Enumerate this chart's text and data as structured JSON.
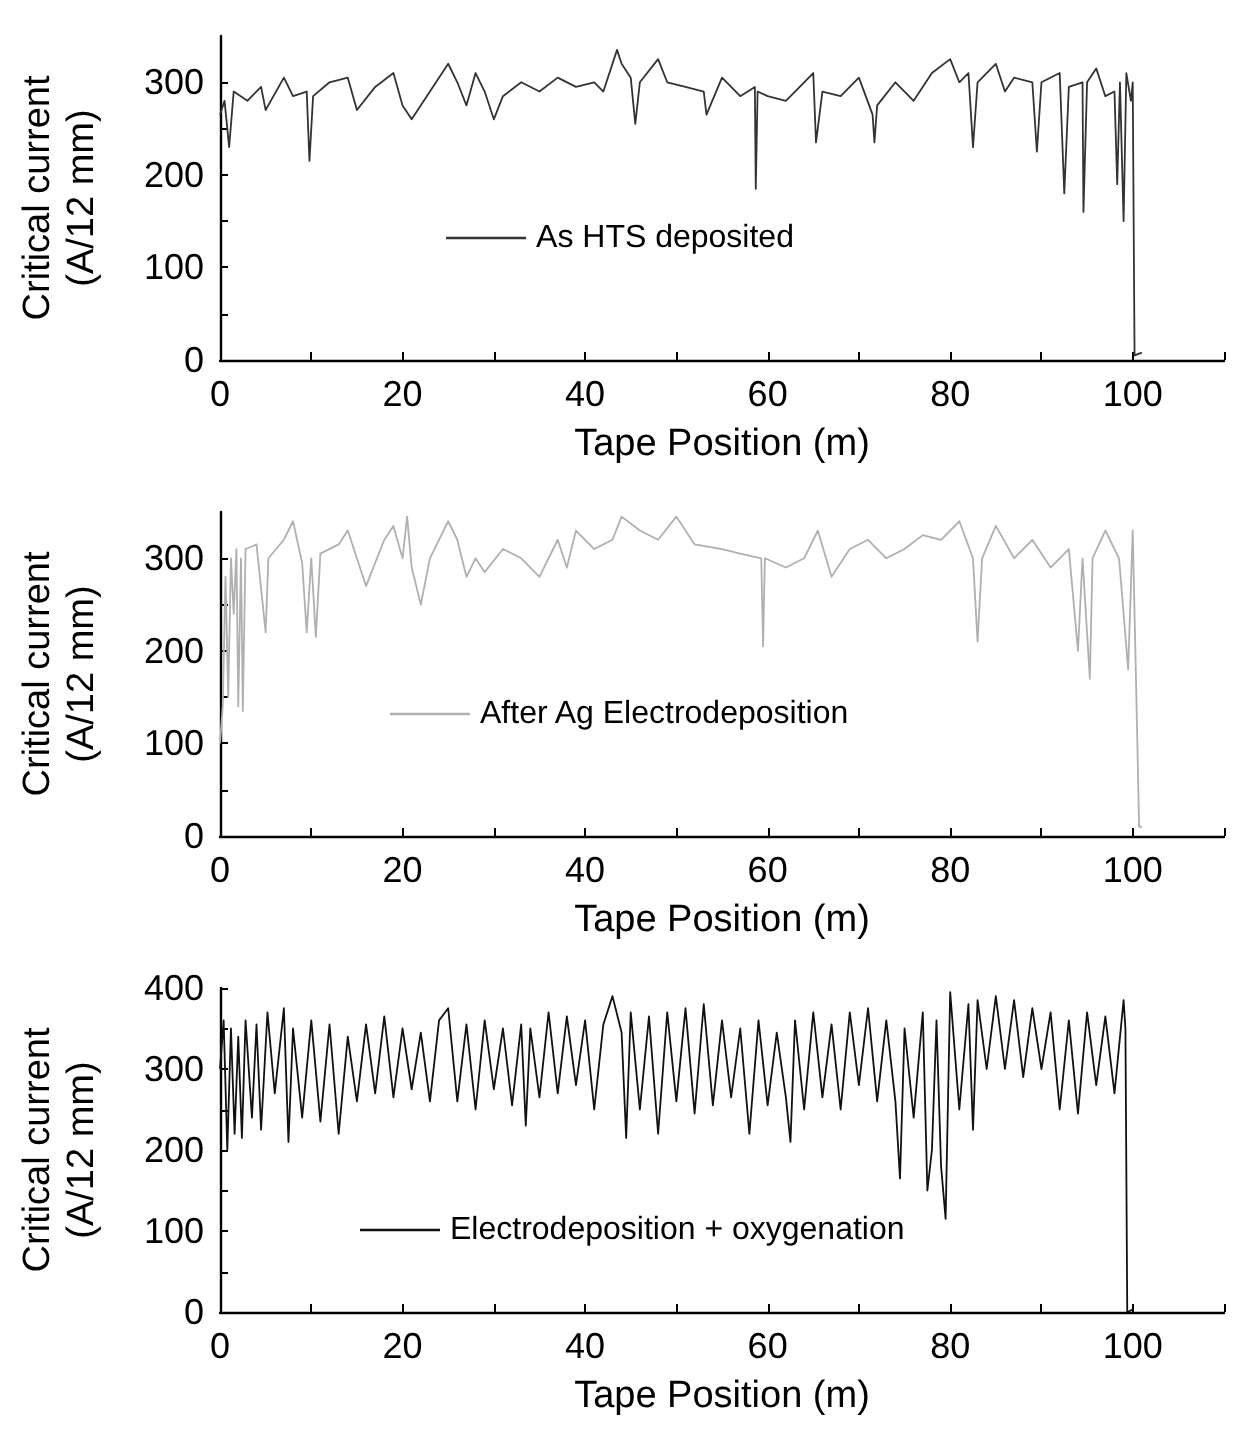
{
  "chart_data": [
    {
      "type": "line",
      "xlabel": "Tape Position (m)",
      "ylabel": "Critical current\n(A/12 mm)",
      "legend": "center",
      "grid": false,
      "xlim": [
        0,
        110
      ],
      "xticks": [
        0,
        {
          "value": 10,
          "label": null
        },
        20,
        {
          "value": 30,
          "label": null
        },
        40,
        {
          "value": 50,
          "label": null
        },
        60,
        {
          "value": 70,
          "label": null
        },
        80,
        {
          "value": 90,
          "label": null
        },
        100,
        {
          "value": 110,
          "label": null
        }
      ],
      "ylim": [
        0,
        350
      ],
      "yticks": [
        0,
        {
          "value": 50,
          "label": null
        },
        100,
        {
          "value": 150,
          "label": null
        },
        200,
        {
          "value": 250,
          "label": null
        },
        300
      ],
      "series": [
        {
          "name": "As HTS deposited",
          "color": "#333333",
          "x": [
            0,
            0.5,
            1,
            1.5,
            3,
            4.5,
            5,
            7,
            8,
            9.5,
            9.8,
            10.2,
            12,
            14,
            15,
            17,
            19,
            20,
            21,
            23,
            25,
            26,
            27,
            28,
            29,
            30,
            31,
            33,
            35,
            37,
            39,
            41,
            42,
            43.5,
            44,
            45,
            45.5,
            46,
            48,
            49,
            51,
            53,
            53.3,
            55,
            57,
            58.6,
            58.7,
            58.9,
            60,
            62,
            64,
            65,
            65.3,
            66,
            68,
            70,
            71.5,
            71.7,
            72,
            74,
            76,
            78,
            80,
            81,
            82,
            82.5,
            83,
            85,
            86,
            87,
            89,
            89.5,
            90,
            92,
            92.5,
            93,
            94.5,
            94.6,
            95,
            96,
            97,
            98,
            98.3,
            98.6,
            99,
            99.3,
            99.8,
            100,
            100.2,
            101
          ],
          "values": [
            265,
            280,
            230,
            290,
            280,
            295,
            270,
            305,
            285,
            290,
            215,
            285,
            300,
            305,
            270,
            295,
            310,
            275,
            260,
            290,
            320,
            300,
            275,
            310,
            290,
            260,
            285,
            300,
            290,
            305,
            295,
            300,
            290,
            335,
            320,
            305,
            255,
            300,
            325,
            300,
            295,
            290,
            265,
            305,
            285,
            295,
            185,
            290,
            285,
            280,
            300,
            310,
            235,
            290,
            285,
            305,
            265,
            235,
            275,
            300,
            280,
            310,
            325,
            300,
            310,
            230,
            300,
            320,
            290,
            305,
            300,
            225,
            300,
            310,
            180,
            295,
            300,
            160,
            300,
            315,
            285,
            290,
            190,
            300,
            150,
            310,
            280,
            300,
            5,
            8
          ]
        }
      ]
    },
    {
      "type": "line",
      "xlabel": "Tape Position (m)",
      "ylabel": "Critical current\n(A/12 mm)",
      "legend": "center",
      "grid": false,
      "xlim": [
        0,
        110
      ],
      "xticks": [
        0,
        {
          "value": 10,
          "label": null
        },
        20,
        {
          "value": 30,
          "label": null
        },
        40,
        {
          "value": 50,
          "label": null
        },
        60,
        {
          "value": 70,
          "label": null
        },
        80,
        {
          "value": 90,
          "label": null
        },
        100,
        {
          "value": 110,
          "label": null
        }
      ],
      "ylim": [
        0,
        350
      ],
      "yticks": [
        0,
        {
          "value": 50,
          "label": null
        },
        100,
        {
          "value": 150,
          "label": null
        },
        200,
        {
          "value": 250,
          "label": null
        },
        300
      ],
      "series": [
        {
          "name": "After Ag Electrodeposition",
          "color": "#b0b0b0",
          "x": [
            0,
            0.3,
            0.6,
            0.9,
            1.2,
            1.5,
            1.8,
            2,
            2.3,
            2.5,
            2.8,
            4,
            5,
            5.3,
            7,
            8,
            9,
            9.5,
            10,
            10.5,
            11,
            13,
            14,
            15,
            16,
            18,
            19,
            20,
            20.5,
            21,
            22,
            23,
            25,
            26,
            27,
            28,
            29,
            31,
            33,
            35,
            37,
            38,
            39,
            41,
            43,
            44,
            46,
            48,
            50,
            52,
            55,
            57,
            59.3,
            59.5,
            59.7,
            62,
            64,
            65.5,
            67,
            69,
            71,
            73,
            75,
            77,
            79,
            81,
            82.5,
            83,
            83.5,
            85,
            87,
            89,
            91,
            93,
            94,
            94.5,
            95.3,
            95.6,
            97,
            98.5,
            99.5,
            100,
            100.4,
            100.7,
            101
          ],
          "values": [
            100,
            140,
            280,
            150,
            300,
            240,
            310,
            140,
            300,
            135,
            310,
            315,
            220,
            300,
            320,
            340,
            295,
            220,
            300,
            215,
            305,
            315,
            330,
            300,
            270,
            320,
            335,
            300,
            345,
            290,
            250,
            300,
            340,
            320,
            280,
            300,
            285,
            310,
            300,
            280,
            320,
            290,
            330,
            310,
            320,
            345,
            330,
            320,
            345,
            315,
            310,
            305,
            300,
            205,
            300,
            290,
            300,
            330,
            280,
            310,
            320,
            300,
            310,
            325,
            320,
            340,
            300,
            210,
            300,
            335,
            300,
            320,
            290,
            310,
            200,
            300,
            170,
            300,
            330,
            300,
            180,
            330,
            150,
            10,
            10
          ]
        }
      ]
    },
    {
      "type": "line",
      "xlabel": "Tape Position (m)",
      "ylabel": "Critical current\n(A/12 mm)",
      "legend": "bottom",
      "grid": false,
      "xlim": [
        0,
        110
      ],
      "xticks": [
        0,
        {
          "value": 10,
          "label": null
        },
        20,
        {
          "value": 30,
          "label": null
        },
        40,
        {
          "value": 50,
          "label": null
        },
        60,
        {
          "value": 70,
          "label": null
        },
        80,
        {
          "value": 90,
          "label": null
        },
        100,
        {
          "value": 110,
          "label": null
        }
      ],
      "ylim": [
        0,
        400
      ],
      "yticks": [
        0,
        {
          "value": 50,
          "label": null
        },
        100,
        {
          "value": 150,
          "label": null
        },
        200,
        {
          "value": 250,
          "label": null
        },
        300,
        {
          "value": 350,
          "label": null
        },
        400
      ],
      "series": [
        {
          "name": "Electrodeposition + oxygenation",
          "color": "#111111",
          "x": [
            0,
            0.4,
            0.8,
            1.2,
            1.6,
            2,
            2.4,
            2.8,
            3.5,
            4,
            4.5,
            5.2,
            6,
            7,
            7.5,
            8,
            9,
            10,
            11,
            12,
            13,
            14,
            15,
            16,
            17,
            18,
            19,
            20,
            21,
            22,
            23,
            24,
            25,
            26,
            27,
            28,
            29,
            30,
            31,
            32,
            33,
            33.5,
            34,
            35,
            36,
            37,
            38,
            39,
            40,
            41,
            42,
            43,
            44,
            44.5,
            45,
            46,
            47,
            48,
            49,
            50,
            51,
            52,
            53,
            54,
            55,
            56,
            57,
            58,
            59,
            60,
            61,
            62,
            62.5,
            63,
            64,
            65,
            66,
            67,
            68,
            69,
            70,
            71,
            72,
            73,
            74,
            74.5,
            75,
            76,
            77,
            77.5,
            78,
            78.5,
            79,
            79.5,
            80,
            81,
            82,
            82.5,
            83,
            84,
            85,
            86,
            87,
            88,
            89,
            90,
            91,
            92,
            93,
            94,
            95,
            96,
            97,
            98,
            99,
            99.2,
            99.4,
            100
          ],
          "values": [
            300,
            360,
            200,
            350,
            220,
            340,
            215,
            360,
            240,
            355,
            225,
            370,
            270,
            375,
            210,
            350,
            240,
            360,
            235,
            355,
            220,
            340,
            260,
            355,
            270,
            365,
            265,
            350,
            275,
            345,
            260,
            360,
            375,
            260,
            355,
            250,
            360,
            275,
            350,
            255,
            355,
            230,
            350,
            265,
            370,
            270,
            365,
            280,
            360,
            250,
            355,
            390,
            345,
            215,
            370,
            250,
            365,
            220,
            370,
            260,
            375,
            245,
            380,
            255,
            360,
            265,
            350,
            220,
            360,
            255,
            345,
            265,
            210,
            360,
            250,
            370,
            265,
            355,
            250,
            370,
            280,
            375,
            260,
            360,
            260,
            165,
            350,
            240,
            370,
            150,
            200,
            360,
            180,
            115,
            395,
            250,
            380,
            225,
            385,
            300,
            390,
            300,
            385,
            290,
            375,
            300,
            370,
            250,
            360,
            245,
            370,
            280,
            365,
            270,
            385,
            350,
            0,
            3
          ]
        }
      ]
    }
  ]
}
